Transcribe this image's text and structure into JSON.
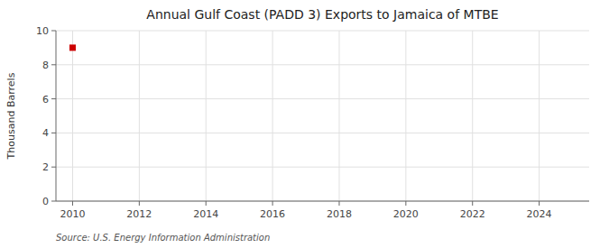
{
  "chart_data": {
    "type": "scatter",
    "title": "Annual Gulf Coast (PADD 3) Exports to Jamaica of MTBE",
    "ylabel": "Thousand Barrels",
    "annotation": "Source: U.S. Energy Information Administration",
    "x": [
      2010
    ],
    "values": [
      9
    ],
    "color": "#cc0000",
    "marker": "square",
    "xlim": [
      2009.5,
      2025.5
    ],
    "ylim": [
      0,
      10
    ],
    "xticks": [
      2010,
      2012,
      2014,
      2016,
      2018,
      2020,
      2022,
      2024
    ],
    "yticks": [
      0,
      2,
      4,
      6,
      8,
      10
    ],
    "grid": true
  }
}
